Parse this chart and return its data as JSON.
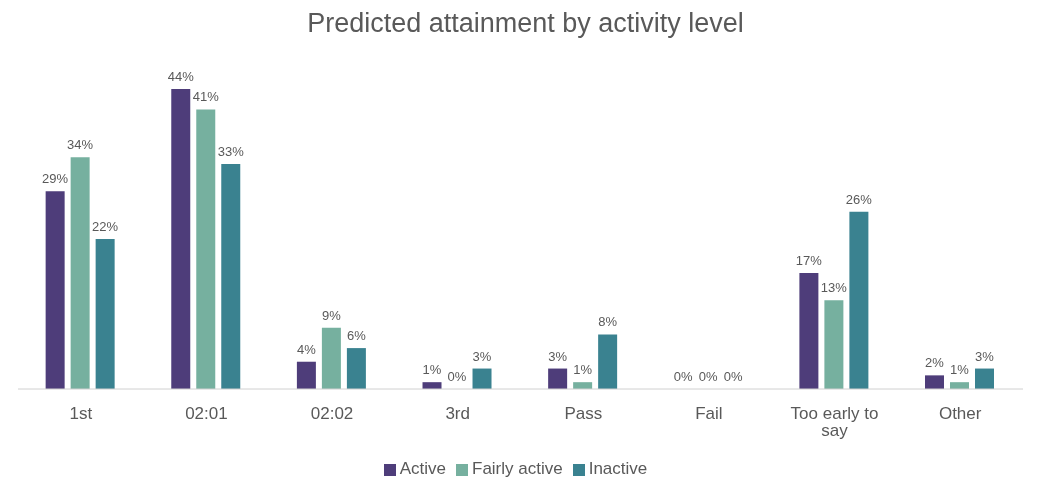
{
  "chart_data": {
    "type": "bar",
    "title": "Predicted attainment by activity level",
    "categories": [
      "1st",
      "02:01",
      "02:02",
      "3rd",
      "Pass",
      "Fail",
      "Too early to say",
      "Other"
    ],
    "series": [
      {
        "name": "Active",
        "color": "#4e3d7a",
        "values": [
          29,
          44,
          4,
          1,
          3,
          0,
          17,
          2
        ],
        "value_labels": [
          "29%",
          "44%",
          "4%",
          "1%",
          "3%",
          "0%",
          "17%",
          "2%"
        ]
      },
      {
        "name": "Fairly active",
        "color": "#76b09f",
        "values": [
          34,
          41,
          9,
          0,
          1,
          0,
          13,
          1
        ],
        "value_labels": [
          "34%",
          "41%",
          "9%",
          "0%",
          "1%",
          "0%",
          "13%",
          "1%"
        ]
      },
      {
        "name": "Inactive",
        "color": "#3a8290",
        "values": [
          22,
          33,
          6,
          3,
          8,
          0,
          26,
          3
        ],
        "value_labels": [
          "22%",
          "33%",
          "6%",
          "3%",
          "8%",
          "0%",
          "26%",
          "3%"
        ]
      }
    ],
    "legend": "bottom",
    "grid": false
  }
}
